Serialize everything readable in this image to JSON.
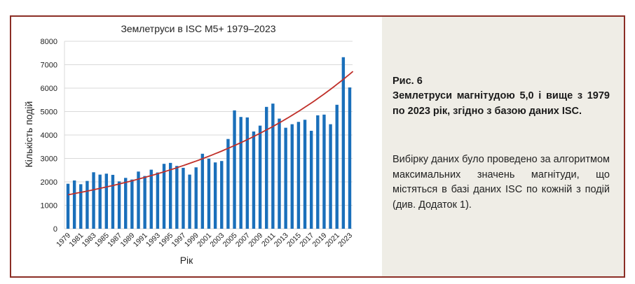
{
  "chart_data": {
    "type": "bar",
    "title": "Землетруси в ISC M5+ 1979–2023",
    "xlabel": "Рік",
    "ylabel": "Кількість подій",
    "ylim": [
      0,
      8000
    ],
    "yticks": [
      0,
      1000,
      2000,
      3000,
      4000,
      5000,
      6000,
      7000,
      8000
    ],
    "grid": true,
    "categories": [
      1979,
      1980,
      1981,
      1982,
      1983,
      1984,
      1985,
      1986,
      1987,
      1988,
      1989,
      1990,
      1991,
      1992,
      1993,
      1994,
      1995,
      1996,
      1997,
      1998,
      1999,
      2000,
      2001,
      2002,
      2003,
      2004,
      2005,
      2006,
      2007,
      2008,
      2009,
      2010,
      2011,
      2012,
      2013,
      2014,
      2015,
      2016,
      2017,
      2018,
      2019,
      2020,
      2021,
      2022,
      2023
    ],
    "xtick_labels": [
      "1979",
      "1981",
      "1983",
      "1985",
      "1987",
      "1989",
      "1991",
      "1993",
      "1995",
      "1997",
      "1999",
      "2001",
      "2003",
      "2005",
      "2007",
      "2009",
      "2011",
      "2013",
      "2015",
      "2017",
      "2019",
      "2021",
      "2023"
    ],
    "values": [
      1920,
      2060,
      1900,
      2040,
      2410,
      2310,
      2350,
      2300,
      2020,
      2170,
      2100,
      2440,
      2250,
      2520,
      2400,
      2770,
      2810,
      2680,
      2600,
      2310,
      2620,
      3200,
      2990,
      2830,
      2890,
      3830,
      5050,
      4770,
      4750,
      4150,
      4400,
      5200,
      5340,
      4700,
      4310,
      4460,
      4560,
      4650,
      4180,
      4840,
      4870,
      4460,
      5290,
      7320,
      6030
    ],
    "trend": {
      "type": "exponential",
      "start": 1450,
      "end": 6600
    },
    "colors": {
      "bar": "#1a6fba",
      "trend": "#c0302a"
    }
  },
  "caption": {
    "figure": "Рис. 6",
    "heading": "Землетруси магнітудою 5,0 і вище з 1979 по 2023 рік, згідно з базою даних ISC.",
    "body": "Вибірку даних було проведено за алгоритмом максимальних значень магнітуди, що містяться в базі даних ISC по кожній з подій (див. Додаток 1)."
  }
}
